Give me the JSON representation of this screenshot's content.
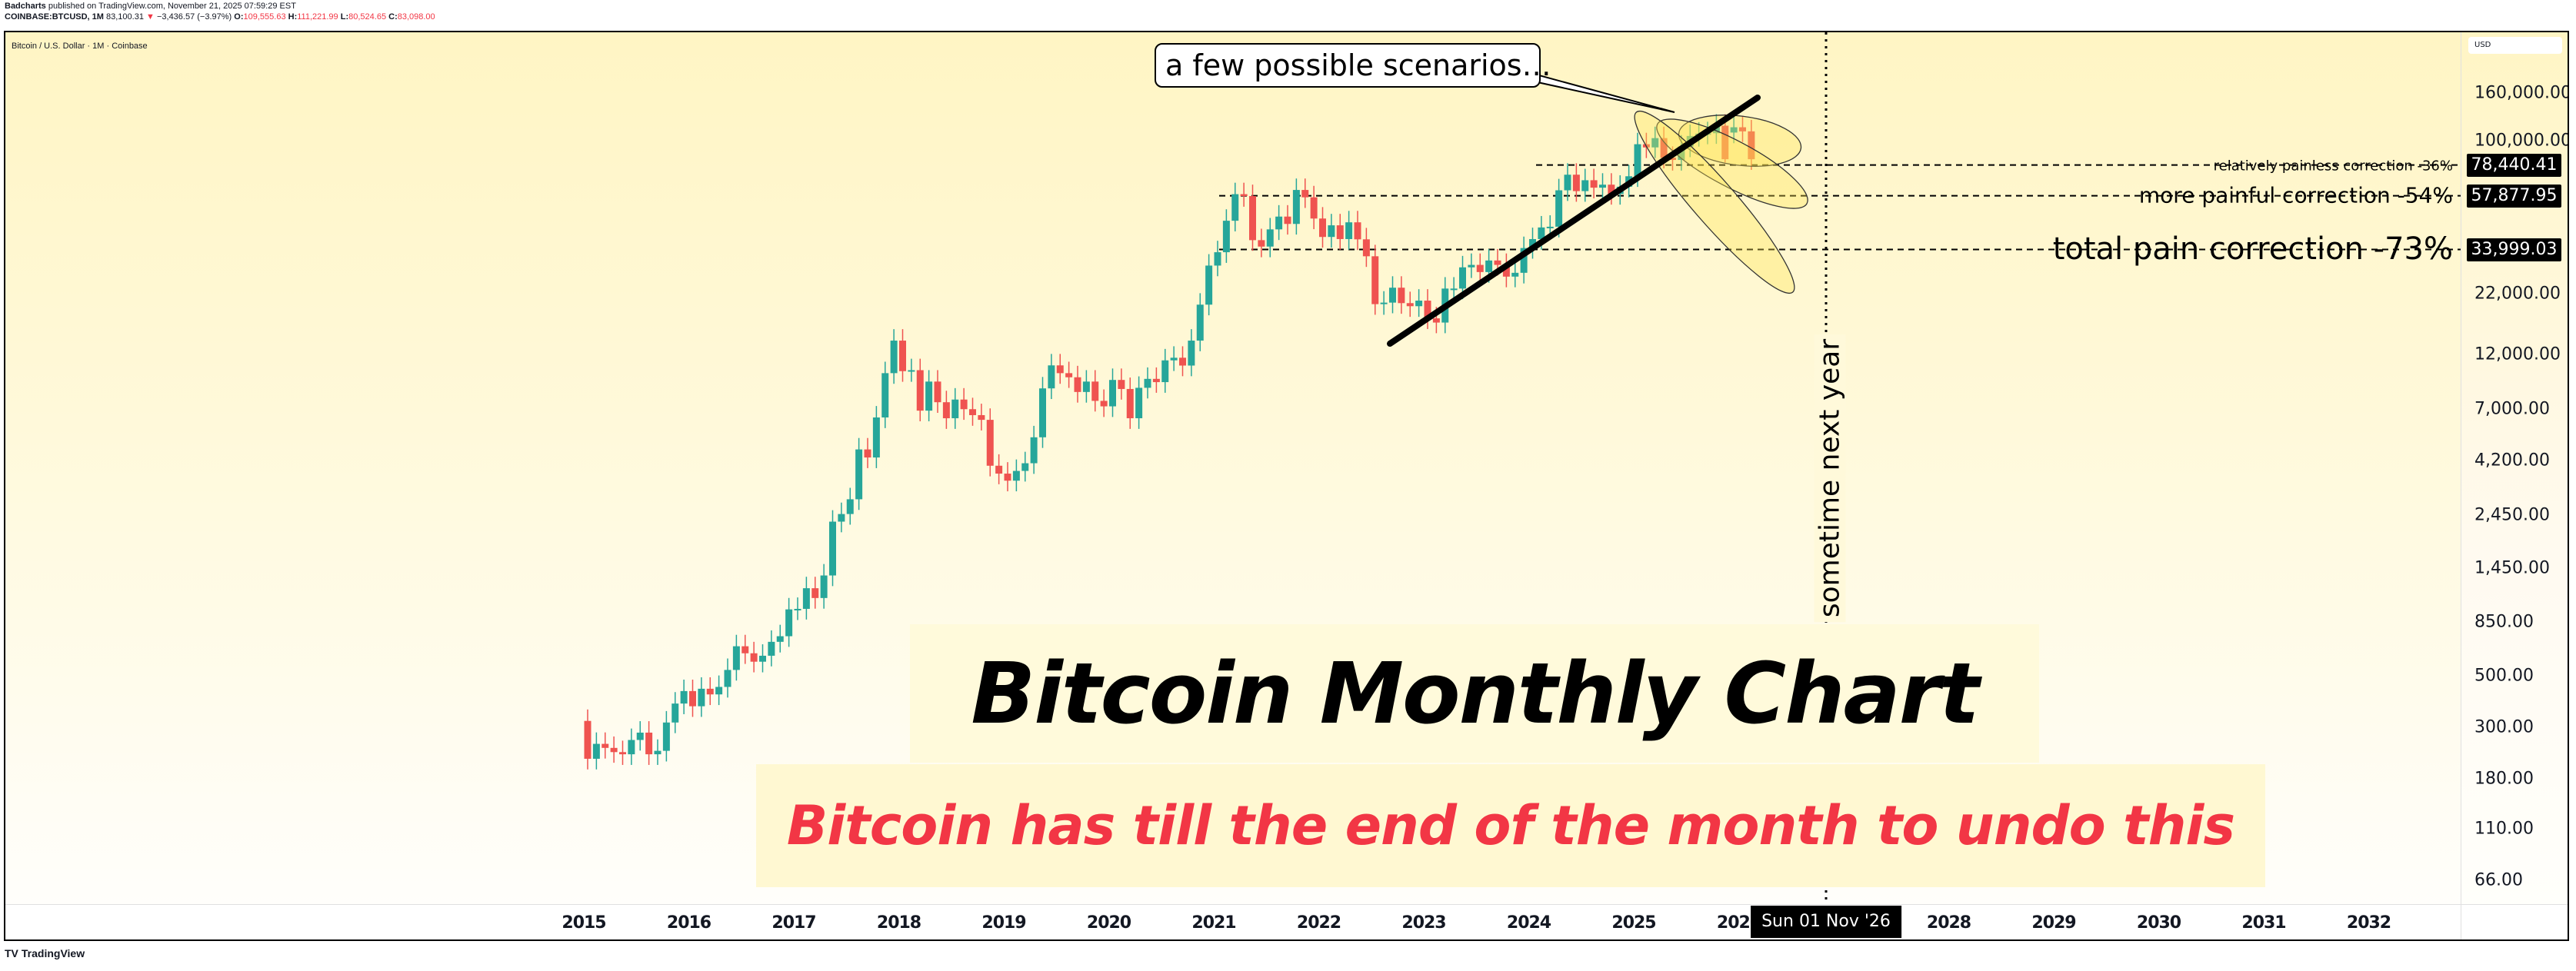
{
  "header": {
    "author": "Badcharts",
    "published": "published on TradingView.com, November 21, 2025 07:59:29 EST",
    "symbol": "COINBASE:BTCUSD, 1M",
    "last": "83,100.31",
    "change_arrow": "▼",
    "change": "−3,436.57 (−3.97%)",
    "o_label": "O:",
    "o": "109,555.63",
    "h_label": "H:",
    "h": "111,221.99",
    "l_label": "L:",
    "l": "80,524.65",
    "c_label": "C:",
    "c": "83,098.00"
  },
  "chart_title": "Bitcoin / U.S. Dollar · 1M · Coinbase",
  "currency": "USD",
  "colors": {
    "up": "#26a69a",
    "down": "#ef5350",
    "accent_red": "#f23645"
  },
  "price_axis": [
    {
      "label": "160,000.00",
      "value": 160000
    },
    {
      "label": "100,000.00",
      "value": 100000
    },
    {
      "label": "22,000.00",
      "value": 22000
    },
    {
      "label": "12,000.00",
      "value": 12000
    },
    {
      "label": "7,000.00",
      "value": 7000
    },
    {
      "label": "4,200.00",
      "value": 4200
    },
    {
      "label": "2,450.00",
      "value": 2450
    },
    {
      "label": "1,450.00",
      "value": 1450
    },
    {
      "label": "850.00",
      "value": 850
    },
    {
      "label": "500.00",
      "value": 500
    },
    {
      "label": "300.00",
      "value": 300
    },
    {
      "label": "180.00",
      "value": 180
    },
    {
      "label": "110.00",
      "value": 110
    },
    {
      "label": "66.00",
      "value": 66
    }
  ],
  "price_badges": [
    {
      "label": "78,440.41",
      "value": 78440.41
    },
    {
      "label": "57,877.95",
      "value": 57877.95
    },
    {
      "label": "33,999.03",
      "value": 33999.03
    }
  ],
  "time_axis": [
    "2015",
    "2016",
    "2017",
    "2018",
    "2019",
    "2020",
    "2021",
    "2022",
    "2023",
    "2024",
    "2025",
    "2026",
    "2028",
    "2029",
    "2030",
    "2031",
    "2032"
  ],
  "time_badge": "Sun 01 Nov '26",
  "annotations": {
    "callout": "a few possible scenarios…",
    "scenario_1": "relatively painless correction -36%",
    "scenario_2": "more painful correction -54%",
    "scenario_3": "total pain correction -73%",
    "vertical_note": "sometime next year",
    "title": "Bitcoin Monthly Chart",
    "subtitle": "Bitcoin has till the end of the month to undo this"
  },
  "footer": {
    "logo": "TV",
    "brand": "TradingView"
  },
  "chart_data": {
    "type": "candlestick",
    "title": "Bitcoin / U.S. Dollar · 1M · Coinbase",
    "yscale": "log",
    "ylim": [
      60,
      200000
    ],
    "xlim": [
      "2014-12",
      "2032-12"
    ],
    "x_ticks": [
      "2015",
      "2016",
      "2017",
      "2018",
      "2019",
      "2020",
      "2021",
      "2022",
      "2023",
      "2024",
      "2025",
      "2026",
      "2028",
      "2029",
      "2030",
      "2031",
      "2032"
    ],
    "y_ticks": [
      160000,
      100000,
      22000,
      12000,
      7000,
      4200,
      2450,
      1450,
      850,
      500,
      300,
      180,
      110,
      66
    ],
    "horizontal_levels": [
      {
        "label": "relatively painless correction -36%",
        "value": 78440.41
      },
      {
        "label": "more painful correction -54%",
        "value": 57877.95
      },
      {
        "label": "total pain correction -73%",
        "value": 33999.03
      }
    ],
    "vertical_marker": {
      "date": "2026-11-01",
      "label": "sometime next year"
    },
    "trendline": {
      "from": [
        "2022-09",
        15000
      ],
      "to": [
        "2025-12",
        140000
      ]
    },
    "last_candle": {
      "open": 109555.63,
      "high": 111221.99,
      "low": 80524.65,
      "close": 83098.0
    },
    "candles_monthly_close_approx": {
      "start": "2015-01",
      "close": [
        220,
        255,
        245,
        235,
        230,
        265,
        285,
        230,
        238,
        315,
        380,
        430,
        370,
        440,
        416,
        448,
        530,
        670,
        625,
        575,
        610,
        700,
        740,
        965,
        970,
        1190,
        1080,
        1350,
        2300,
        2480,
        2870,
        4700,
        4340,
        6450,
        10000,
        13800,
        10200,
        10300,
        6900,
        9200,
        7500,
        6400,
        7700,
        7000,
        6600,
        6300,
        4000,
        3700,
        3450,
        3800,
        4100,
        5300,
        8600,
        10800,
        10000,
        9600,
        8300,
        9200,
        7600,
        7200,
        9350,
        8550,
        6400,
        8650,
        9450,
        9150,
        11350,
        11650,
        10780,
        13800,
        19700,
        29000,
        33100,
        45200,
        58800,
        57700,
        37300,
        35000,
        41500,
        47100,
        43800,
        61300,
        57000,
        46200,
        38500,
        43200,
        37700,
        44500,
        37600,
        31800,
        19800,
        20100,
        23300,
        20000,
        19400,
        20500,
        17200,
        16500,
        23100,
        23100,
        28500,
        29200,
        27200,
        30500,
        29200,
        26000,
        27000,
        34500,
        37700,
        42300,
        42600,
        61100,
        71300,
        60600,
        67500,
        62700,
        64600,
        58900,
        63300,
        70200,
        96400,
        93400,
        102400,
        84300,
        82500,
        94200,
        104600,
        107100,
        107500,
        115800,
        108200,
        114000,
        109500,
        83100
      ]
    }
  }
}
